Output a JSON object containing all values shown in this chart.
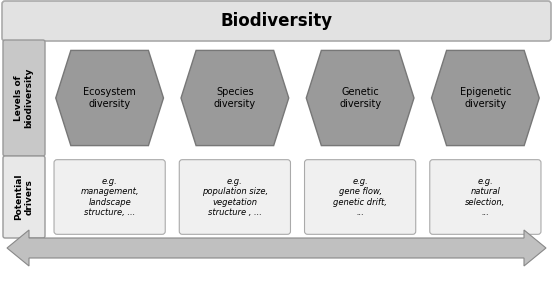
{
  "title": "Biodiversity",
  "title_fontsize": 12,
  "bg_color": "#ffffff",
  "hex_color": "#9a9a9a",
  "hex_edge_color": "#777777",
  "box_color": "#f0f0f0",
  "box_edge_color": "#aaaaaa",
  "sidebar_top_color": "#c8c8c8",
  "sidebar_bot_color": "#e8e8e8",
  "sidebar_edge_color": "#999999",
  "top_bar_color": "#e2e2e2",
  "top_bar_edge": "#aaaaaa",
  "label_sidebar_top": "Levels of\nbiodiversity",
  "label_sidebar_bottom": "Potential\ndrivers",
  "hex_labels": [
    "Ecosystem\ndiversity",
    "Species\ndiversity",
    "Genetic\ndiversity",
    "Epigenetic\ndiversity"
  ],
  "box_labels": [
    "e.g.\nmanagement,\nlandscape\nstructure, ...",
    "e.g.\npopulation size,\nvegetation\nstructure , ...",
    "e.g.\ngene flow,\ngenetic drift,\n...",
    "e.g.\nnatural\nselection,\n..."
  ],
  "arrow_color": "#c0c0c0",
  "arrow_edge_color": "#888888",
  "figsize": [
    5.53,
    2.81
  ],
  "dpi": 100
}
